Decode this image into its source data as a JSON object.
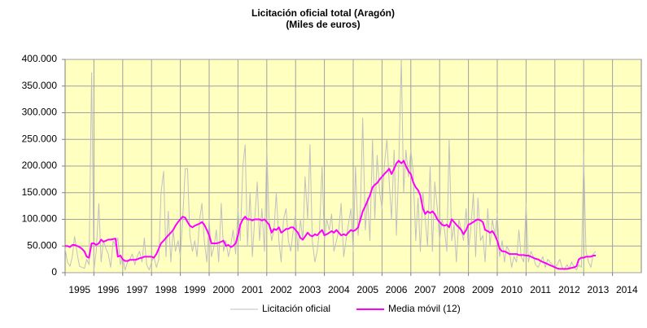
{
  "chart_data": {
    "type": "line",
    "title": "Licitación oficial total  (Aragón)",
    "subtitle": "(Miles de euros)",
    "x": [
      1995.0,
      1995.08,
      1995.17,
      1995.25,
      1995.33,
      1995.42,
      1995.5,
      1995.58,
      1995.67,
      1995.75,
      1995.83,
      1995.92,
      1996.0,
      1996.08,
      1996.17,
      1996.25,
      1996.33,
      1996.42,
      1996.5,
      1996.58,
      1996.67,
      1996.75,
      1996.83,
      1996.92,
      1997.0,
      1997.08,
      1997.17,
      1997.25,
      1997.33,
      1997.42,
      1997.5,
      1997.58,
      1997.67,
      1997.75,
      1997.83,
      1997.92,
      1998.0,
      1998.08,
      1998.17,
      1998.25,
      1998.33,
      1998.42,
      1998.5,
      1998.58,
      1998.67,
      1998.75,
      1998.83,
      1998.92,
      1999.0,
      1999.08,
      1999.17,
      1999.25,
      1999.33,
      1999.42,
      1999.5,
      1999.58,
      1999.67,
      1999.75,
      1999.83,
      1999.92,
      2000.0,
      2000.08,
      2000.17,
      2000.25,
      2000.33,
      2000.42,
      2000.5,
      2000.58,
      2000.67,
      2000.75,
      2000.83,
      2000.92,
      2001.0,
      2001.08,
      2001.17,
      2001.25,
      2001.33,
      2001.42,
      2001.5,
      2001.58,
      2001.67,
      2001.75,
      2001.83,
      2001.92,
      2002.0,
      2002.08,
      2002.17,
      2002.25,
      2002.33,
      2002.42,
      2002.5,
      2002.58,
      2002.67,
      2002.75,
      2002.83,
      2002.92,
      2003.0,
      2003.08,
      2003.17,
      2003.25,
      2003.33,
      2003.42,
      2003.5,
      2003.58,
      2003.67,
      2003.75,
      2003.83,
      2003.92,
      2004.0,
      2004.08,
      2004.17,
      2004.25,
      2004.33,
      2004.42,
      2004.5,
      2004.58,
      2004.67,
      2004.75,
      2004.83,
      2004.92,
      2005.0,
      2005.08,
      2005.17,
      2005.25,
      2005.33,
      2005.42,
      2005.5,
      2005.58,
      2005.67,
      2005.75,
      2005.83,
      2005.92,
      2006.0,
      2006.08,
      2006.17,
      2006.25,
      2006.33,
      2006.42,
      2006.5,
      2006.58,
      2006.67,
      2006.75,
      2006.83,
      2006.92,
      2007.0,
      2007.08,
      2007.17,
      2007.25,
      2007.33,
      2007.42,
      2007.5,
      2007.58,
      2007.67,
      2007.75,
      2007.83,
      2007.92,
      2008.0,
      2008.08,
      2008.17,
      2008.25,
      2008.33,
      2008.42,
      2008.5,
      2008.58,
      2008.67,
      2008.75,
      2008.83,
      2008.92,
      2009.0,
      2009.08,
      2009.17,
      2009.25,
      2009.33,
      2009.42,
      2009.5,
      2009.58,
      2009.67,
      2009.75,
      2009.83,
      2009.92,
      2010.0,
      2010.08,
      2010.17,
      2010.25,
      2010.33,
      2010.42,
      2010.5,
      2010.58,
      2010.67,
      2010.75,
      2010.83,
      2010.92,
      2011.0,
      2011.08,
      2011.17,
      2011.25,
      2011.33,
      2011.42,
      2011.5,
      2011.58,
      2011.67,
      2011.75,
      2011.83,
      2011.92,
      2012.0,
      2012.08,
      2012.17,
      2012.25,
      2012.33,
      2012.42,
      2012.5,
      2012.58,
      2012.67,
      2012.75,
      2012.83,
      2012.92,
      2013.0,
      2013.08,
      2013.17,
      2013.25,
      2013.33,
      2013.42
    ],
    "series": [
      {
        "name": "Licitación oficial",
        "color": "#c0c0c0",
        "width": 1,
        "values": [
          45000,
          20000,
          12000,
          30000,
          68000,
          35000,
          12000,
          10000,
          8000,
          25000,
          15000,
          375000,
          5000,
          40000,
          130000,
          20000,
          60000,
          45000,
          35000,
          10000,
          60000,
          50000,
          65000,
          15000,
          30000,
          5000,
          20000,
          25000,
          35000,
          15000,
          30000,
          40000,
          20000,
          65000,
          15000,
          5000,
          20000,
          30000,
          10000,
          25000,
          150000,
          190000,
          30000,
          115000,
          20000,
          80000,
          40000,
          60000,
          30000,
          100000,
          195000,
          195000,
          70000,
          40000,
          60000,
          30000,
          100000,
          130000,
          60000,
          20000,
          100000,
          30000,
          50000,
          80000,
          20000,
          130000,
          40000,
          60000,
          30000,
          50000,
          80000,
          35000,
          120000,
          60000,
          200000,
          240000,
          50000,
          150000,
          30000,
          100000,
          170000,
          60000,
          120000,
          40000,
          235000,
          100000,
          60000,
          80000,
          150000,
          60000,
          20000,
          100000,
          120000,
          60000,
          40000,
          80000,
          110000,
          40000,
          100000,
          60000,
          180000,
          100000,
          240000,
          60000,
          20000,
          40000,
          80000,
          200000,
          60000,
          100000,
          80000,
          110000,
          40000,
          60000,
          80000,
          130000,
          30000,
          60000,
          90000,
          120000,
          40000,
          200000,
          70000,
          120000,
          290000,
          80000,
          140000,
          60000,
          250000,
          100000,
          220000,
          150000,
          120000,
          200000,
          250000,
          170000,
          100000,
          230000,
          70000,
          200000,
          400000,
          150000,
          230000,
          180000,
          230000,
          190000,
          60000,
          140000,
          40000,
          150000,
          100000,
          50000,
          200000,
          40000,
          170000,
          120000,
          60000,
          100000,
          80000,
          40000,
          250000,
          60000,
          90000,
          20000,
          100000,
          80000,
          60000,
          120000,
          40000,
          80000,
          150000,
          30000,
          140000,
          60000,
          70000,
          20000,
          120000,
          50000,
          100000,
          70000,
          110000,
          30000,
          60000,
          20000,
          50000,
          40000,
          10000,
          30000,
          20000,
          80000,
          30000,
          20000,
          130000,
          20000,
          40000,
          30000,
          15000,
          10000,
          20000,
          30000,
          10000,
          25000,
          20000,
          15000,
          10000,
          15000,
          25000,
          10000,
          5000,
          15000,
          8000,
          20000,
          10000,
          5000,
          15000,
          10000,
          220000,
          40000,
          20000,
          10000,
          35000,
          40000
        ]
      },
      {
        "name": "Media móvil (12)",
        "color": "#ff00ff",
        "width": 2,
        "values": [
          50000,
          50000,
          48000,
          52000,
          52000,
          50000,
          48000,
          45000,
          40000,
          30000,
          28000,
          55000,
          55000,
          52000,
          55000,
          62000,
          58000,
          60000,
          62000,
          62000,
          63000,
          64000,
          30000,
          32000,
          25000,
          22000,
          22000,
          24000,
          24000,
          24000,
          25000,
          27000,
          28000,
          30000,
          30000,
          30000,
          30000,
          28000,
          35000,
          45000,
          55000,
          60000,
          65000,
          70000,
          75000,
          80000,
          88000,
          95000,
          100000,
          105000,
          103000,
          95000,
          88000,
          85000,
          88000,
          90000,
          92000,
          95000,
          90000,
          80000,
          70000,
          55000,
          55000,
          55000,
          56000,
          58000,
          60000,
          50000,
          52000,
          48000,
          50000,
          55000,
          70000,
          90000,
          100000,
          105000,
          100000,
          100000,
          98000,
          100000,
          100000,
          100000,
          98000,
          100000,
          95000,
          90000,
          75000,
          82000,
          80000,
          85000,
          75000,
          78000,
          82000,
          82000,
          85000,
          85000,
          80000,
          75000,
          65000,
          62000,
          68000,
          75000,
          70000,
          68000,
          72000,
          70000,
          75000,
          80000,
          70000,
          72000,
          75000,
          78000,
          75000,
          80000,
          75000,
          70000,
          72000,
          70000,
          75000,
          80000,
          78000,
          80000,
          85000,
          100000,
          115000,
          125000,
          135000,
          145000,
          160000,
          165000,
          168000,
          175000,
          180000,
          185000,
          190000,
          195000,
          185000,
          195000,
          205000,
          210000,
          205000,
          210000,
          200000,
          190000,
          185000,
          170000,
          160000,
          155000,
          145000,
          120000,
          110000,
          115000,
          112000,
          115000,
          110000,
          100000,
          95000,
          90000,
          88000,
          90000,
          85000,
          100000,
          95000,
          90000,
          85000,
          80000,
          72000,
          80000,
          90000,
          92000,
          95000,
          98000,
          100000,
          98000,
          95000,
          80000,
          78000,
          75000,
          78000,
          70000,
          60000,
          45000,
          40000,
          40000,
          38000,
          35000,
          35000,
          35000,
          35000,
          33000,
          33000,
          33000,
          32000,
          32000,
          30000,
          28000,
          26000,
          25000,
          22000,
          20000,
          18000,
          16000,
          14000,
          12000,
          10000,
          8000,
          7000,
          7000,
          7000,
          7000,
          8000,
          9000,
          10000,
          12000,
          25000,
          28000,
          28000,
          30000,
          30000,
          30000,
          32000,
          32000
        ]
      }
    ],
    "xlim": [
      1995,
      2015
    ],
    "xticks": [
      1995,
      1996,
      1997,
      1998,
      1999,
      2000,
      2001,
      2002,
      2003,
      2004,
      2005,
      2006,
      2007,
      2008,
      2009,
      2010,
      2011,
      2012,
      2013,
      2014
    ],
    "ylim": [
      0,
      400000
    ],
    "yticks": [
      {
        "value": 0,
        "label": "0"
      },
      {
        "value": 50000,
        "label": "50.000"
      },
      {
        "value": 100000,
        "label": "100.000"
      },
      {
        "value": 150000,
        "label": "150.000"
      },
      {
        "value": 200000,
        "label": "200.000"
      },
      {
        "value": 250000,
        "label": "250.000"
      },
      {
        "value": 300000,
        "label": "300.000"
      },
      {
        "value": 350000,
        "label": "350.000"
      },
      {
        "value": 400000,
        "label": "400.000"
      }
    ],
    "grid": true,
    "plot_background": "#ffffc0",
    "legend": "bottom"
  }
}
